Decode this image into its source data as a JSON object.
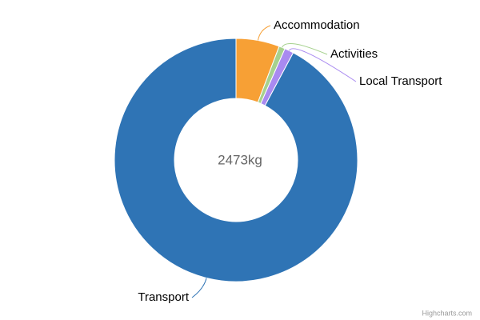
{
  "chart_data": {
    "type": "donut",
    "center_label": "2473kg",
    "categories": [
      "Accommodation",
      "Activities",
      "Local Transport",
      "Transport"
    ],
    "values": [
      143,
      20,
      30,
      2280
    ],
    "colors": [
      "#f7a035",
      "#a6d18e",
      "#a98af0",
      "#2f74b5"
    ],
    "credits": "Highcharts.com"
  }
}
